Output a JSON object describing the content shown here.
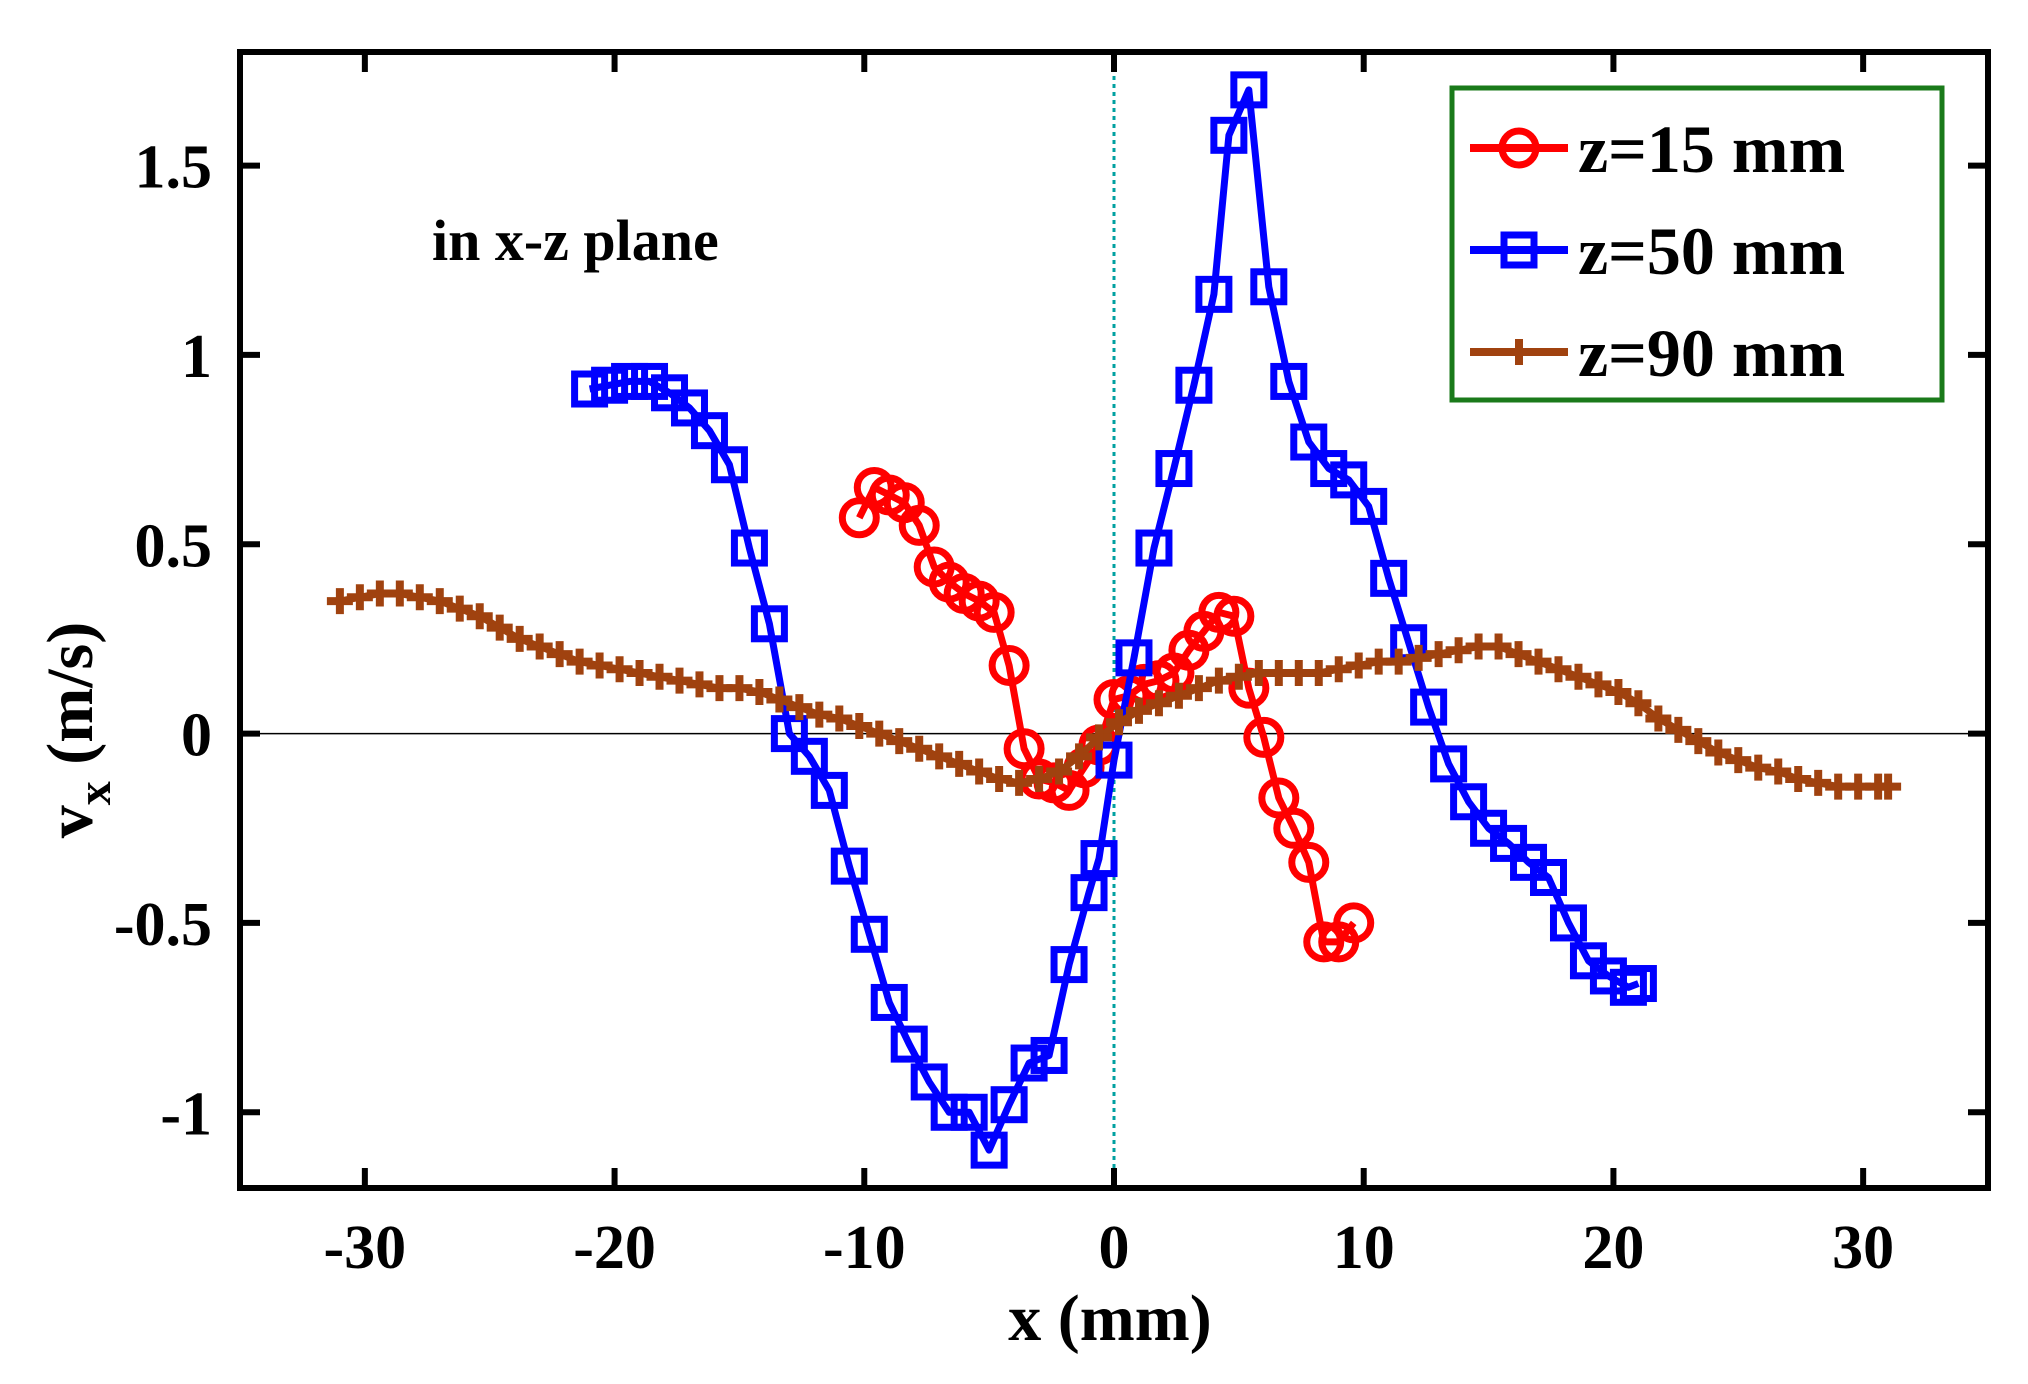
{
  "chart_data": {
    "type": "line",
    "title": "",
    "xlabel": "x (mm)",
    "ylabel": "v",
    "ylabel_subscript": "x",
    "ylabel_units": " (m/s)",
    "xlim": [
      -35,
      35
    ],
    "ylim": [
      -1.2,
      1.8
    ],
    "xticks": [
      -30,
      -20,
      -10,
      0,
      10,
      20,
      30
    ],
    "xtick_labels": [
      "-30",
      "-20",
      "-10",
      "0",
      "10",
      "20",
      "30"
    ],
    "yticks": [
      -1,
      -0.5,
      0,
      0.5,
      1,
      1.5
    ],
    "ytick_labels": [
      "-1",
      "-0.5",
      "0",
      "0.5",
      "1",
      "1.5"
    ],
    "annotation": "in x-z plane",
    "reference_lines": {
      "horizontal_y": 0,
      "vertical_x": 0
    },
    "legend_position": "top-right",
    "series": [
      {
        "name": "z=15 mm",
        "color": "#ff0000",
        "legend_color": "#ff0000",
        "marker": "circle",
        "x": [
          -10.2,
          -9.6,
          -9.0,
          -8.4,
          -7.8,
          -7.2,
          -6.6,
          -6.0,
          -5.4,
          -4.8,
          -4.2,
          -3.6,
          -3.0,
          -2.4,
          -1.8,
          -1.2,
          -0.6,
          0.0,
          0.6,
          1.2,
          1.8,
          2.4,
          3.0,
          3.6,
          4.2,
          4.8,
          5.4,
          6.0,
          6.6,
          7.2,
          7.8,
          8.4,
          9.0,
          9.6
        ],
        "y": [
          0.57,
          0.65,
          0.63,
          0.61,
          0.55,
          0.44,
          0.4,
          0.37,
          0.35,
          0.32,
          0.18,
          -0.04,
          -0.12,
          -0.13,
          -0.15,
          -0.09,
          -0.03,
          0.09,
          0.1,
          0.13,
          0.14,
          0.16,
          0.22,
          0.27,
          0.32,
          0.31,
          0.12,
          -0.01,
          -0.17,
          -0.25,
          -0.34,
          -0.55,
          -0.55,
          -0.5
        ]
      },
      {
        "name": "z=50 mm",
        "color": "#0000ff",
        "legend_color": "#0000ff",
        "marker": "square",
        "x": [
          -21.0,
          -20.2,
          -19.4,
          -18.6,
          -17.8,
          -17.0,
          -16.2,
          -15.4,
          -14.6,
          -13.8,
          -13.0,
          -12.2,
          -11.4,
          -10.6,
          -9.8,
          -9.0,
          -8.2,
          -7.4,
          -6.6,
          -5.8,
          -5.0,
          -4.2,
          -3.4,
          -2.6,
          -1.8,
          -1.0,
          -0.6,
          0.0,
          0.8,
          1.6,
          2.4,
          3.2,
          4.0,
          4.6,
          5.4,
          6.2,
          7.0,
          7.8,
          8.6,
          9.4,
          10.2,
          11.0,
          11.8,
          12.6,
          13.4,
          14.2,
          15.0,
          15.8,
          16.6,
          17.4,
          18.2,
          19.0,
          19.8,
          20.6,
          21.0
        ],
        "y": [
          0.91,
          0.92,
          0.93,
          0.93,
          0.9,
          0.86,
          0.8,
          0.71,
          0.49,
          0.29,
          0.0,
          -0.06,
          -0.15,
          -0.35,
          -0.53,
          -0.71,
          -0.82,
          -0.92,
          -1.0,
          -1.0,
          -1.1,
          -0.98,
          -0.87,
          -0.85,
          -0.61,
          -0.42,
          -0.33,
          -0.07,
          0.2,
          0.49,
          0.7,
          0.92,
          1.16,
          1.58,
          1.7,
          1.18,
          0.93,
          0.77,
          0.7,
          0.67,
          0.6,
          0.41,
          0.24,
          0.07,
          -0.08,
          -0.18,
          -0.25,
          -0.29,
          -0.34,
          -0.38,
          -0.5,
          -0.6,
          -0.64,
          -0.67,
          -0.66
        ]
      },
      {
        "name": "z=90 mm",
        "color": "#a0420f",
        "legend_color": "#a0420f",
        "marker": "plus",
        "x": [
          -31.0,
          -30.2,
          -29.4,
          -28.6,
          -27.8,
          -27.0,
          -26.2,
          -25.4,
          -24.6,
          -23.8,
          -23.0,
          -22.2,
          -21.4,
          -20.6,
          -19.8,
          -19.0,
          -18.2,
          -17.4,
          -16.6,
          -15.8,
          -15.0,
          -14.2,
          -13.4,
          -12.6,
          -11.8,
          -11.0,
          -10.2,
          -9.4,
          -8.6,
          -7.8,
          -7.0,
          -6.2,
          -5.4,
          -4.6,
          -3.8,
          -3.0,
          -2.2,
          -1.4,
          -0.6,
          0.2,
          1.0,
          1.8,
          2.6,
          3.4,
          4.2,
          5.0,
          5.8,
          6.6,
          7.4,
          8.2,
          9.0,
          9.8,
          10.6,
          11.4,
          12.2,
          13.0,
          13.8,
          14.6,
          15.4,
          16.2,
          17.0,
          17.8,
          18.6,
          19.4,
          20.2,
          21.0,
          21.8,
          22.6,
          23.4,
          24.2,
          25.0,
          25.8,
          26.6,
          27.4,
          28.2,
          29.0,
          29.8,
          30.6,
          31.0
        ],
        "y": [
          0.35,
          0.36,
          0.37,
          0.37,
          0.36,
          0.35,
          0.33,
          0.31,
          0.28,
          0.25,
          0.23,
          0.21,
          0.19,
          0.18,
          0.17,
          0.16,
          0.15,
          0.14,
          0.13,
          0.12,
          0.12,
          0.11,
          0.09,
          0.07,
          0.05,
          0.04,
          0.02,
          0.0,
          -0.02,
          -0.04,
          -0.06,
          -0.08,
          -0.1,
          -0.12,
          -0.13,
          -0.12,
          -0.1,
          -0.06,
          -0.01,
          0.03,
          0.06,
          0.08,
          0.1,
          0.12,
          0.14,
          0.15,
          0.16,
          0.16,
          0.16,
          0.16,
          0.17,
          0.18,
          0.19,
          0.19,
          0.2,
          0.21,
          0.22,
          0.23,
          0.23,
          0.21,
          0.19,
          0.17,
          0.15,
          0.13,
          0.11,
          0.08,
          0.04,
          0.01,
          -0.02,
          -0.05,
          -0.07,
          -0.09,
          -0.1,
          -0.12,
          -0.13,
          -0.14,
          -0.14,
          -0.14,
          -0.14
        ]
      }
    ]
  },
  "colors": {
    "axis": "#000000",
    "legend_border": "#1a7a1a",
    "annotation": "#c000c0",
    "zero_line": "#000000",
    "vertical_line": "#00a0a0"
  }
}
